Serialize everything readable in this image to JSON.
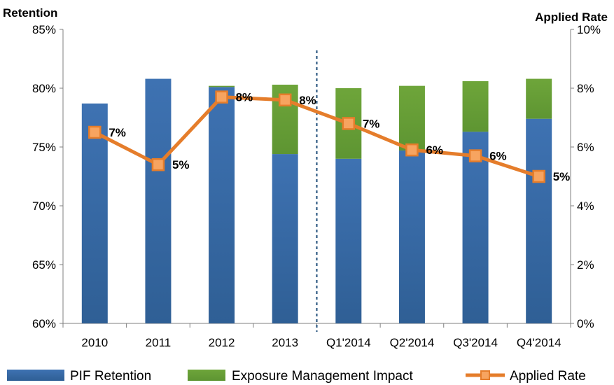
{
  "chart_data": {
    "type": "bar",
    "categories": [
      "2010",
      "2011",
      "2012",
      "2013",
      "Q1'2014",
      "Q2'2014",
      "Q3'2014",
      "Q4'2014"
    ],
    "ylabel_left": "Retention",
    "ylabel_right": "Applied Rate",
    "ylim_left": [
      60,
      85
    ],
    "ylim_right": [
      0,
      10
    ],
    "yticks_left": [
      "60%",
      "65%",
      "70%",
      "75%",
      "80%",
      "85%"
    ],
    "yticks_left_values": [
      60,
      65,
      70,
      75,
      80,
      85
    ],
    "yticks_right": [
      "0%",
      "2%",
      "4%",
      "6%",
      "8%",
      "10%"
    ],
    "yticks_right_values": [
      0,
      2,
      4,
      6,
      8,
      10
    ],
    "series": [
      {
        "name": "PIF Retention",
        "kind": "bar",
        "axis": "left",
        "values": [
          78.7,
          80.8,
          80.1,
          74.4,
          74.0,
          74.7,
          76.3,
          77.4
        ]
      },
      {
        "name": "Exposure Management Impact",
        "kind": "bar-stacked",
        "axis": "left",
        "values": [
          0,
          0,
          0.1,
          5.9,
          6.0,
          5.5,
          4.3,
          3.4
        ]
      },
      {
        "name": "Applied Rate",
        "kind": "line",
        "axis": "right",
        "values": [
          6.5,
          5.4,
          7.7,
          7.6,
          6.8,
          5.9,
          5.7,
          5.0
        ],
        "labels": [
          "7%",
          "5%",
          "8%",
          "8%",
          "7%",
          "6%",
          "6%",
          "5%"
        ]
      }
    ],
    "divider_after_category": 3,
    "legend_position": "bottom",
    "grid": false,
    "colors": {
      "pif": "#3d70ad",
      "exposure": "#6fa03b",
      "line": "#e57d2b",
      "marker_fill": "#f7a460",
      "divider": "#1f4e79"
    }
  }
}
